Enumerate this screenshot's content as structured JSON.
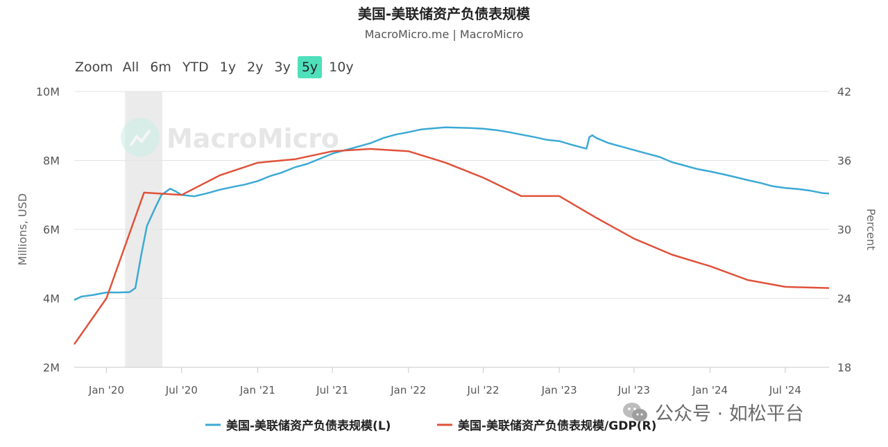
{
  "header": {
    "title": "美国-美联储资产负债表规模",
    "subtitle": "MacroMicro.me | MacroMicro"
  },
  "range_selector": {
    "label": "Zoom",
    "buttons": [
      "All",
      "6m",
      "YTD",
      "1y",
      "2y",
      "3y",
      "5y",
      "10y"
    ],
    "active": "5y"
  },
  "watermark_logo_text": "MacroMicro",
  "overlay_caption": "公众号 · 如松平台",
  "colors": {
    "series_left": "#3aa9d4",
    "series_right": "#e0513a",
    "shade": "#ebebeb",
    "active_button": "#4ee0bb"
  },
  "chart_data": {
    "type": "line",
    "title": "美国-美联储资产负债表规模",
    "subtitle": "MacroMicro.me | MacroMicro",
    "x_ticks": [
      "Jan '20",
      "Jul '20",
      "Jan '21",
      "Jul '21",
      "Jan '22",
      "Jul '22",
      "Jan '23",
      "Jul '23",
      "Jan '24",
      "Jul '24"
    ],
    "x_tick_dates": [
      "2020-01-01",
      "2020-07-01",
      "2021-01-01",
      "2021-07-01",
      "2022-01-01",
      "2022-07-01",
      "2023-01-01",
      "2023-07-01",
      "2024-01-01",
      "2024-07-01"
    ],
    "xlim": [
      "2019-10-15",
      "2024-10-15"
    ],
    "left_axis": {
      "label": "Millions, USD",
      "ticks": [
        "2M",
        "4M",
        "6M",
        "8M",
        "10M"
      ],
      "ylim": [
        2000000,
        10000000
      ]
    },
    "right_axis": {
      "label": "Percent",
      "ticks": [
        "18",
        "24",
        "30",
        "36",
        "42"
      ],
      "ylim": [
        18,
        42
      ]
    },
    "grid": true,
    "legend_position": "bottom",
    "shaded_region": {
      "from": "2020-02-15",
      "to": "2020-05-15"
    },
    "series": [
      {
        "name": "美国-美联储资产负债表规模(L)",
        "axis": "left",
        "points": [
          [
            "2019-10-15",
            3950000
          ],
          [
            "2019-11-01",
            4050000
          ],
          [
            "2019-12-01",
            4100000
          ],
          [
            "2020-01-01",
            4170000
          ],
          [
            "2020-02-01",
            4170000
          ],
          [
            "2020-02-26",
            4180000
          ],
          [
            "2020-03-11",
            4300000
          ],
          [
            "2020-03-25",
            5250000
          ],
          [
            "2020-04-08",
            6100000
          ],
          [
            "2020-04-29",
            6650000
          ],
          [
            "2020-05-13",
            7000000
          ],
          [
            "2020-06-03",
            7180000
          ],
          [
            "2020-06-17",
            7100000
          ],
          [
            "2020-07-01",
            7000000
          ],
          [
            "2020-08-01",
            6960000
          ],
          [
            "2020-09-01",
            7050000
          ],
          [
            "2020-10-01",
            7150000
          ],
          [
            "2020-11-01",
            7230000
          ],
          [
            "2020-12-01",
            7300000
          ],
          [
            "2021-01-01",
            7400000
          ],
          [
            "2021-02-01",
            7550000
          ],
          [
            "2021-03-01",
            7650000
          ],
          [
            "2021-04-01",
            7800000
          ],
          [
            "2021-05-01",
            7900000
          ],
          [
            "2021-06-01",
            8050000
          ],
          [
            "2021-07-01",
            8200000
          ],
          [
            "2021-08-01",
            8300000
          ],
          [
            "2021-09-01",
            8400000
          ],
          [
            "2021-10-01",
            8500000
          ],
          [
            "2021-11-01",
            8650000
          ],
          [
            "2021-12-01",
            8750000
          ],
          [
            "2022-01-01",
            8820000
          ],
          [
            "2022-02-01",
            8900000
          ],
          [
            "2022-03-01",
            8930000
          ],
          [
            "2022-04-01",
            8960000
          ],
          [
            "2022-05-01",
            8950000
          ],
          [
            "2022-06-01",
            8940000
          ],
          [
            "2022-07-01",
            8920000
          ],
          [
            "2022-08-01",
            8880000
          ],
          [
            "2022-09-01",
            8820000
          ],
          [
            "2022-10-01",
            8750000
          ],
          [
            "2022-11-01",
            8680000
          ],
          [
            "2022-12-01",
            8600000
          ],
          [
            "2023-01-01",
            8560000
          ],
          [
            "2023-02-01",
            8450000
          ],
          [
            "2023-03-08",
            8340000
          ],
          [
            "2023-03-15",
            8680000
          ],
          [
            "2023-03-22",
            8730000
          ],
          [
            "2023-04-01",
            8650000
          ],
          [
            "2023-05-01",
            8500000
          ],
          [
            "2023-06-01",
            8400000
          ],
          [
            "2023-07-01",
            8300000
          ],
          [
            "2023-08-01",
            8200000
          ],
          [
            "2023-09-01",
            8100000
          ],
          [
            "2023-10-01",
            7950000
          ],
          [
            "2023-11-01",
            7850000
          ],
          [
            "2023-12-01",
            7750000
          ],
          [
            "2024-01-01",
            7680000
          ],
          [
            "2024-02-01",
            7600000
          ],
          [
            "2024-03-01",
            7520000
          ],
          [
            "2024-04-01",
            7430000
          ],
          [
            "2024-05-01",
            7350000
          ],
          [
            "2024-06-01",
            7250000
          ],
          [
            "2024-07-01",
            7200000
          ],
          [
            "2024-08-01",
            7170000
          ],
          [
            "2024-09-01",
            7120000
          ],
          [
            "2024-10-01",
            7050000
          ],
          [
            "2024-10-15",
            7040000
          ]
        ]
      },
      {
        "name": "美国-美联储资产负债表规模/GDP(R)",
        "axis": "right",
        "points": [
          [
            "2019-10-15",
            20.0
          ],
          [
            "2020-01-01",
            24.0
          ],
          [
            "2020-04-01",
            33.2
          ],
          [
            "2020-07-01",
            33.0
          ],
          [
            "2020-10-01",
            34.7
          ],
          [
            "2021-01-01",
            35.8
          ],
          [
            "2021-04-01",
            36.1
          ],
          [
            "2021-07-01",
            36.8
          ],
          [
            "2021-10-01",
            37.0
          ],
          [
            "2022-01-01",
            36.8
          ],
          [
            "2022-04-01",
            35.8
          ],
          [
            "2022-07-01",
            34.5
          ],
          [
            "2022-10-01",
            32.9
          ],
          [
            "2023-01-01",
            32.9
          ],
          [
            "2023-04-01",
            31.0
          ],
          [
            "2023-07-01",
            29.2
          ],
          [
            "2023-10-01",
            27.8
          ],
          [
            "2024-01-01",
            26.8
          ],
          [
            "2024-04-01",
            25.6
          ],
          [
            "2024-07-01",
            25.0
          ],
          [
            "2024-10-15",
            24.9
          ]
        ]
      }
    ]
  }
}
